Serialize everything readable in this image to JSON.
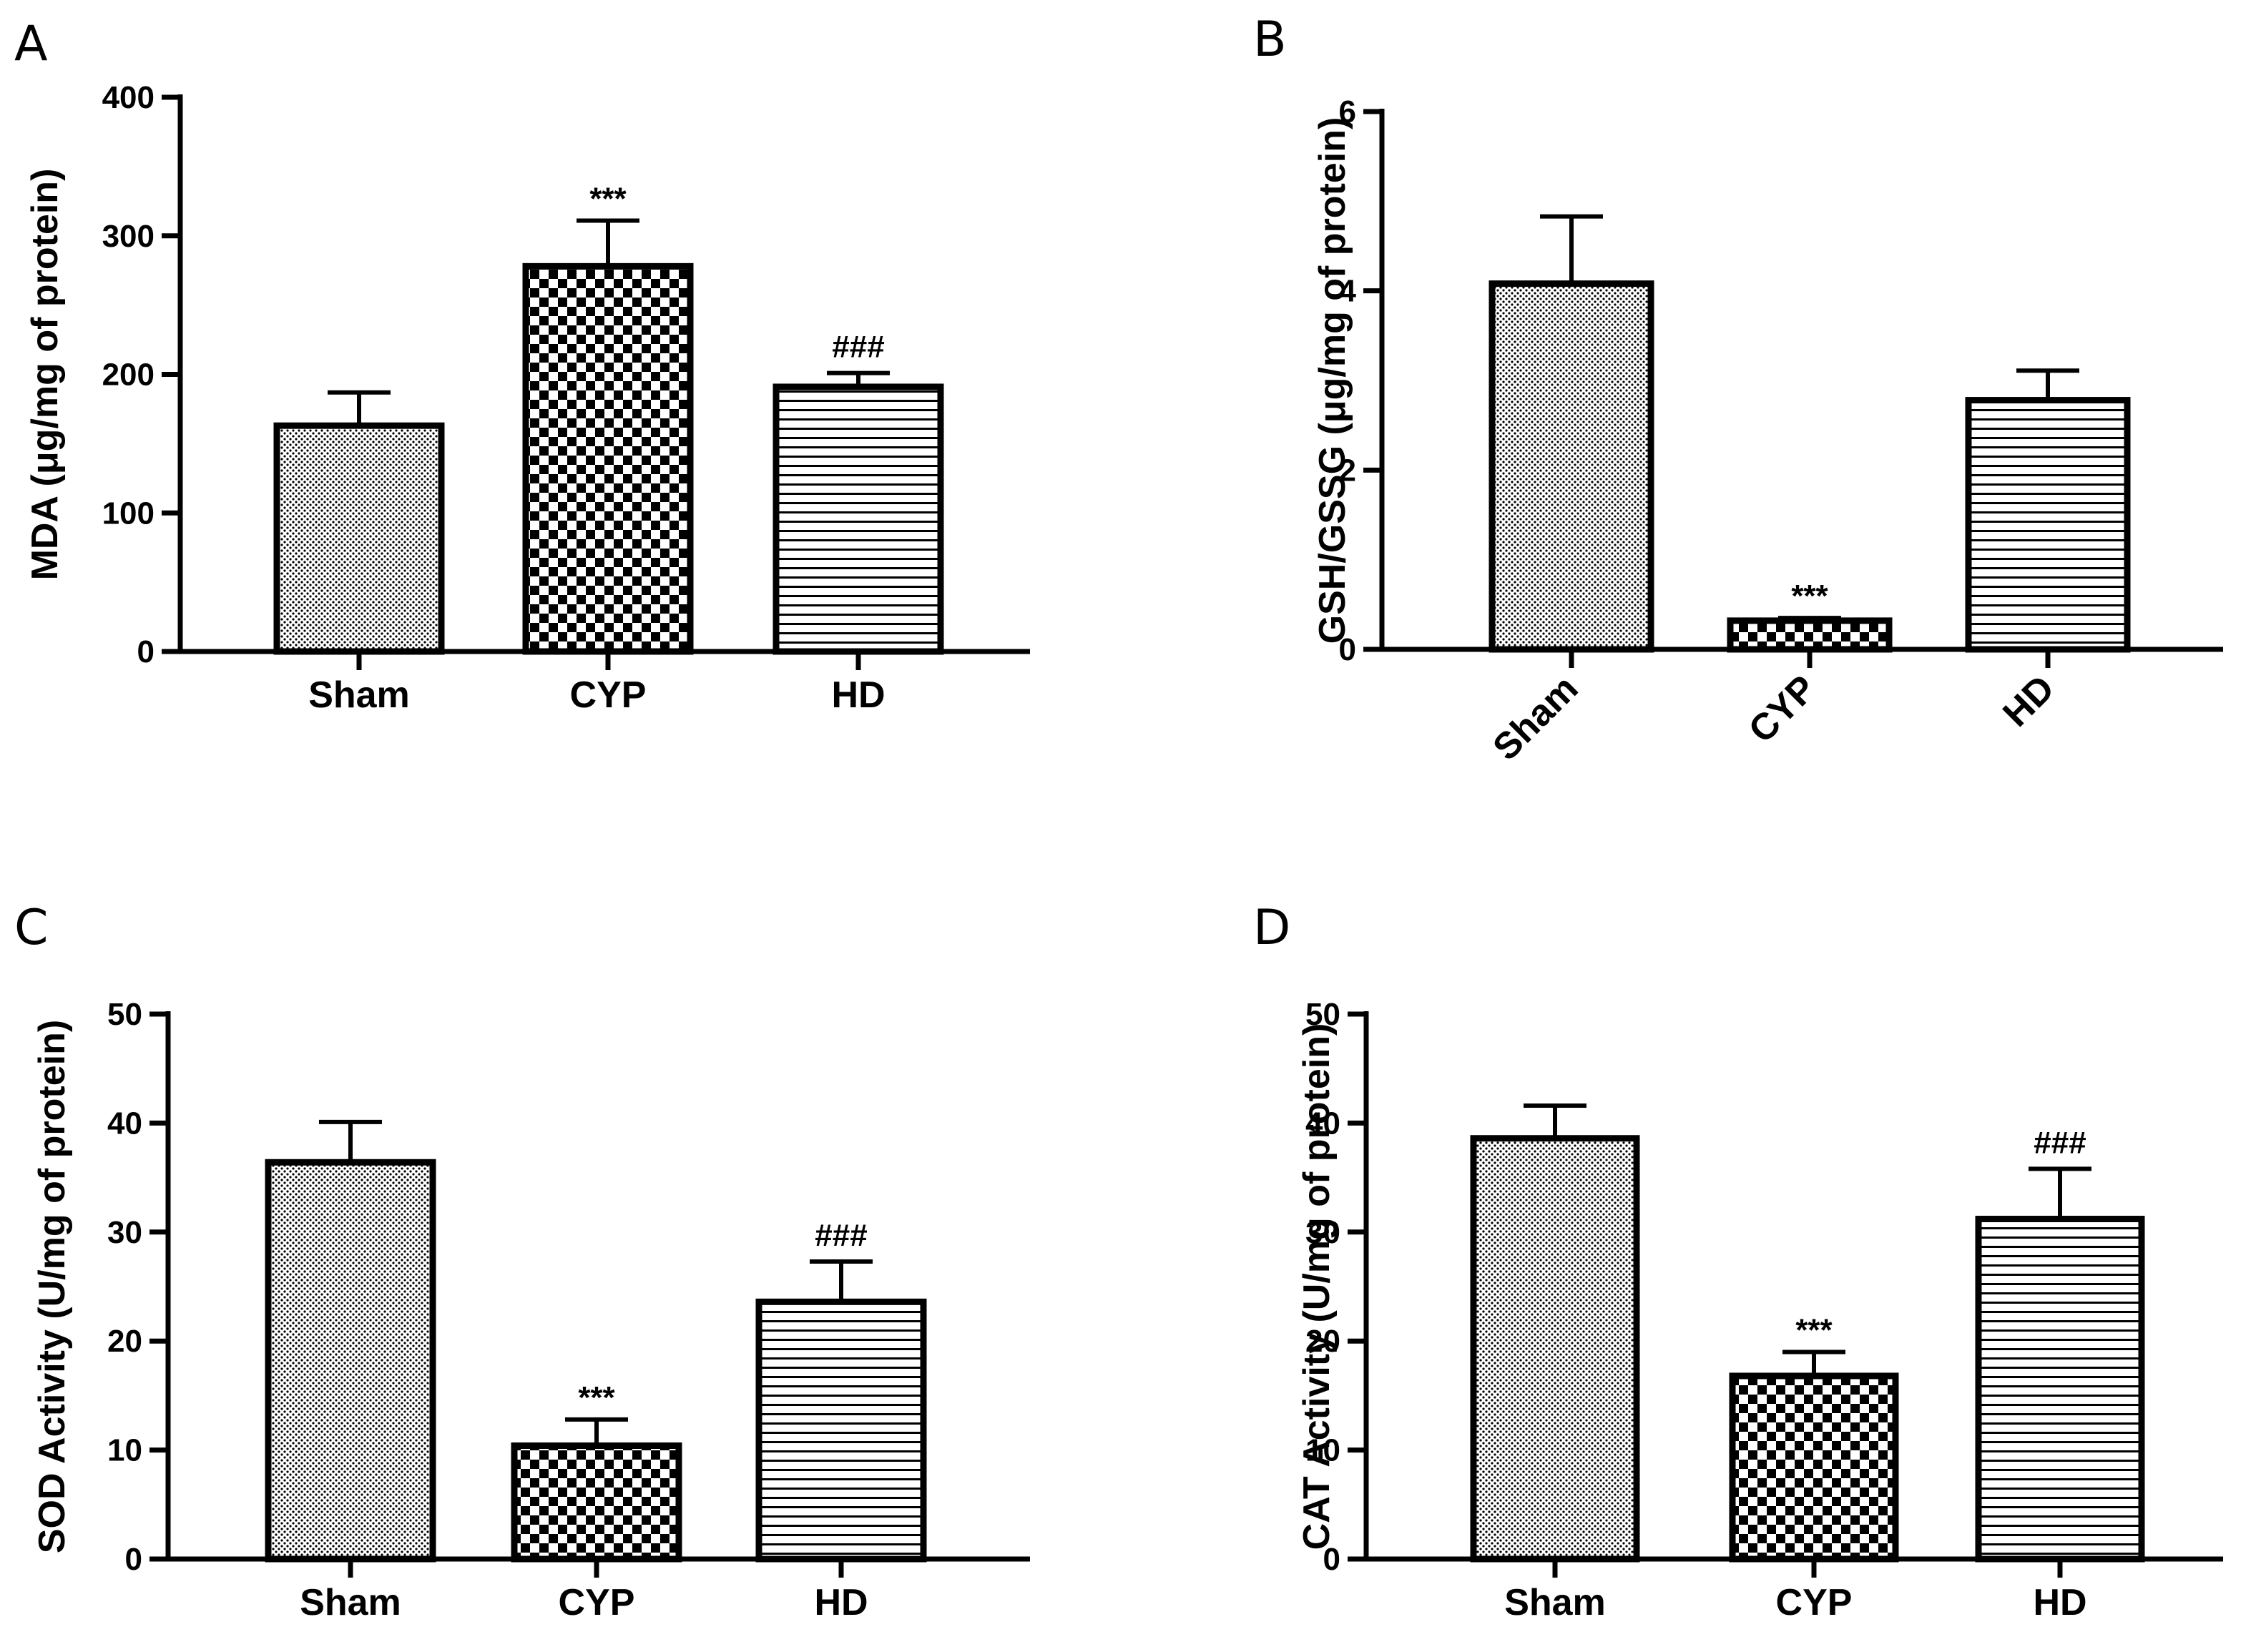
{
  "chart_data": [
    {
      "panel": "A",
      "type": "bar",
      "categories": [
        "Sham",
        "CYP",
        "HD"
      ],
      "values": [
        163,
        278,
        191
      ],
      "errors": [
        24,
        33,
        10
      ],
      "annotations": [
        "",
        "***",
        "###"
      ],
      "patterns": [
        "dots",
        "checker",
        "hlines"
      ],
      "ylabel": "MDA (μg/mg of protein)",
      "ylim": [
        0,
        400
      ],
      "yticks": [
        "0",
        "100",
        "200",
        "300",
        "400"
      ],
      "x_label_rotation": 0
    },
    {
      "panel": "B",
      "type": "bar",
      "categories": [
        "Sham",
        "CYP",
        "HD"
      ],
      "values": [
        4.08,
        0.32,
        2.78
      ],
      "errors": [
        0.75,
        0.03,
        0.33
      ],
      "annotations": [
        "",
        "***",
        ""
      ],
      "patterns": [
        "dots",
        "checker",
        "hlines"
      ],
      "ylabel": "GSH/GSSG (μg/mg of protein)",
      "ylim": [
        0,
        6
      ],
      "yticks": [
        "0",
        "2",
        "4",
        "6"
      ],
      "x_label_rotation": -45
    },
    {
      "panel": "C",
      "type": "bar",
      "categories": [
        "Sham",
        "CYP",
        "HD"
      ],
      "values": [
        36.4,
        10.4,
        23.6
      ],
      "errors": [
        3.7,
        2.4,
        3.7
      ],
      "annotations": [
        "",
        "***",
        "###"
      ],
      "patterns": [
        "dots",
        "checker",
        "hlines"
      ],
      "ylabel": "SOD Activity (U/mg of protein)",
      "ylim": [
        0,
        50
      ],
      "yticks": [
        "0",
        "10",
        "20",
        "30",
        "40",
        "50"
      ],
      "x_label_rotation": 0
    },
    {
      "panel": "D",
      "type": "bar",
      "categories": [
        "Sham",
        "CYP",
        "HD"
      ],
      "values": [
        38.6,
        16.8,
        31.2
      ],
      "errors": [
        3.0,
        2.2,
        4.6
      ],
      "annotations": [
        "",
        "***",
        "###"
      ],
      "patterns": [
        "dots",
        "checker",
        "hlines"
      ],
      "ylabel": "CAT Activity (U/mg of protein)",
      "ylim": [
        0,
        50
      ],
      "yticks": [
        "0",
        "10",
        "20",
        "30",
        "40",
        "50"
      ],
      "x_label_rotation": 0
    }
  ]
}
